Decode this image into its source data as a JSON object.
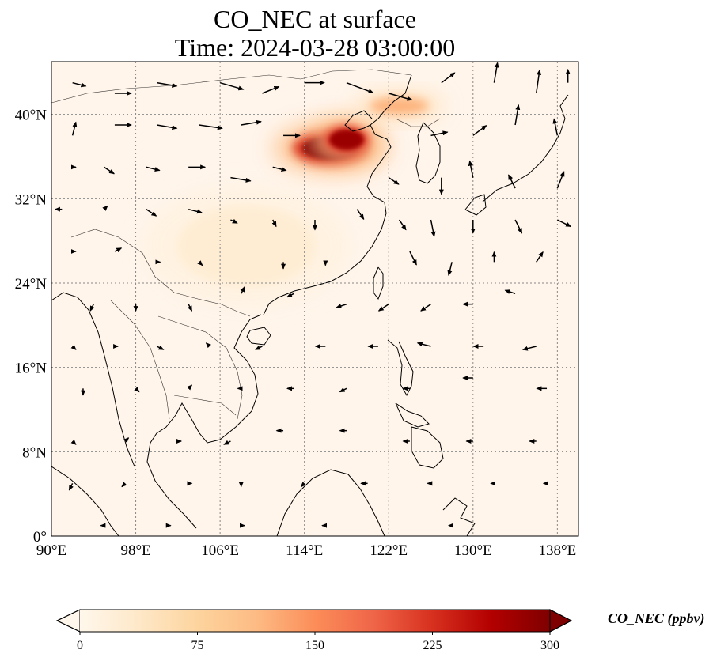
{
  "map": {
    "title_line1": "CO_NEC at surface",
    "title_line2": "Time: 2024-03-28 03:00:00",
    "extent": {
      "lon_min": 90,
      "lon_max": 140,
      "lat_min": 0,
      "lat_max": 45
    },
    "lon_ticks": [
      {
        "value": 90,
        "label": "90°E"
      },
      {
        "value": 98,
        "label": "98°E"
      },
      {
        "value": 106,
        "label": "106°E"
      },
      {
        "value": 114,
        "label": "114°E"
      },
      {
        "value": 122,
        "label": "122°E"
      },
      {
        "value": 130,
        "label": "130°E"
      },
      {
        "value": 138,
        "label": "138°E"
      }
    ],
    "lat_ticks": [
      {
        "value": 0,
        "label": "0°"
      },
      {
        "value": 8,
        "label": "8°N"
      },
      {
        "value": 16,
        "label": "16°N"
      },
      {
        "value": 24,
        "label": "24°N"
      },
      {
        "value": 32,
        "label": "32°N"
      },
      {
        "value": 40,
        "label": "40°N"
      }
    ],
    "gridlines": true,
    "background_color": "#fff5eb",
    "coast_color": "#000000"
  },
  "colorbar": {
    "label": "CO_NEC (ppbv)",
    "min": 0,
    "max": 300,
    "ticks": [
      {
        "value": 0,
        "label": "0"
      },
      {
        "value": 75,
        "label": "75"
      },
      {
        "value": 150,
        "label": "150"
      },
      {
        "value": 225,
        "label": "225"
      },
      {
        "value": 300,
        "label": "300"
      }
    ],
    "colormap": "OrRd",
    "extend": "both",
    "stops": [
      "#fff7ec",
      "#fee8c8",
      "#fdd49e",
      "#fdbb84",
      "#fc8d59",
      "#ef6548",
      "#d7301f",
      "#b30000",
      "#7f0000"
    ]
  },
  "plumes": [
    {
      "name": "north-china-plain",
      "lon": 116.5,
      "lat": 36.8,
      "rx": 3.6,
      "ry": 1.6,
      "value": 300
    },
    {
      "name": "hebei-core",
      "lon": 118.0,
      "lat": 37.6,
      "rx": 2.2,
      "ry": 1.4,
      "value": 280
    },
    {
      "name": "liaoning-band",
      "lon": 123.0,
      "lat": 40.8,
      "rx": 2.8,
      "ry": 0.8,
      "value": 160
    },
    {
      "name": "south-china-haze",
      "lon": 108.5,
      "lat": 27.5,
      "rx": 6.5,
      "ry": 3.8,
      "value": 35
    }
  ],
  "wind_vectors": [
    {
      "lon": 92,
      "lat": 43,
      "u": 4,
      "v": -1
    },
    {
      "lon": 96,
      "lat": 42,
      "u": 5,
      "v": 0
    },
    {
      "lon": 100,
      "lat": 43,
      "u": 6,
      "v": -1
    },
    {
      "lon": 106,
      "lat": 43,
      "u": 7,
      "v": -2
    },
    {
      "lon": 110,
      "lat": 42,
      "u": 5,
      "v": 2
    },
    {
      "lon": 114,
      "lat": 43,
      "u": 6,
      "v": 0
    },
    {
      "lon": 118,
      "lat": 43,
      "u": 8,
      "v": -3
    },
    {
      "lon": 122,
      "lat": 42,
      "u": 7,
      "v": -2
    },
    {
      "lon": 127,
      "lat": 43,
      "u": 4,
      "v": 3
    },
    {
      "lon": 132,
      "lat": 43,
      "u": 1,
      "v": 6
    },
    {
      "lon": 136,
      "lat": 42,
      "u": 1,
      "v": 7
    },
    {
      "lon": 139,
      "lat": 43,
      "u": 0,
      "v": 4
    },
    {
      "lon": 92,
      "lat": 38,
      "u": 1,
      "v": 4
    },
    {
      "lon": 96,
      "lat": 39,
      "u": 5,
      "v": 0
    },
    {
      "lon": 100,
      "lat": 39,
      "u": 6,
      "v": -1
    },
    {
      "lon": 104,
      "lat": 39,
      "u": 7,
      "v": -1
    },
    {
      "lon": 108,
      "lat": 39,
      "u": 6,
      "v": 1
    },
    {
      "lon": 112,
      "lat": 38,
      "u": 5,
      "v": 0
    },
    {
      "lon": 126,
      "lat": 38,
      "u": 5,
      "v": 1
    },
    {
      "lon": 130,
      "lat": 38,
      "u": 4,
      "v": 3
    },
    {
      "lon": 134,
      "lat": 39,
      "u": 1,
      "v": 6
    },
    {
      "lon": 138,
      "lat": 38,
      "u": -1,
      "v": 5
    },
    {
      "lon": 92,
      "lat": 35,
      "u": 1,
      "v": 0
    },
    {
      "lon": 95,
      "lat": 35,
      "u": 3,
      "v": -2
    },
    {
      "lon": 99,
      "lat": 35,
      "u": 4,
      "v": -1
    },
    {
      "lon": 103,
      "lat": 35,
      "u": 5,
      "v": 0
    },
    {
      "lon": 107,
      "lat": 34,
      "u": 6,
      "v": -1
    },
    {
      "lon": 111,
      "lat": 35,
      "u": 4,
      "v": -1
    },
    {
      "lon": 122,
      "lat": 34,
      "u": 3,
      "v": -2
    },
    {
      "lon": 127,
      "lat": 34,
      "u": 0,
      "v": -5
    },
    {
      "lon": 130,
      "lat": 34,
      "u": -1,
      "v": 5
    },
    {
      "lon": 134,
      "lat": 33,
      "u": -2,
      "v": 4
    },
    {
      "lon": 138,
      "lat": 33,
      "u": 2,
      "v": 5
    },
    {
      "lon": 91,
      "lat": 31,
      "u": -2,
      "v": 0
    },
    {
      "lon": 95,
      "lat": 31,
      "u": 1,
      "v": 1
    },
    {
      "lon": 99,
      "lat": 31,
      "u": 3,
      "v": -2
    },
    {
      "lon": 103,
      "lat": 31,
      "u": 4,
      "v": -1
    },
    {
      "lon": 107,
      "lat": 30,
      "u": 2,
      "v": -1
    },
    {
      "lon": 111,
      "lat": 30,
      "u": 1,
      "v": -2
    },
    {
      "lon": 115,
      "lat": 30,
      "u": 0,
      "v": -3
    },
    {
      "lon": 119,
      "lat": 31,
      "u": 2,
      "v": -3
    },
    {
      "lon": 123,
      "lat": 30,
      "u": 2,
      "v": -3
    },
    {
      "lon": 126,
      "lat": 30,
      "u": 1,
      "v": -5
    },
    {
      "lon": 130,
      "lat": 30,
      "u": 0,
      "v": -4
    },
    {
      "lon": 134,
      "lat": 30,
      "u": 2,
      "v": -4
    },
    {
      "lon": 138,
      "lat": 30,
      "u": 4,
      "v": -2
    },
    {
      "lon": 92,
      "lat": 27,
      "u": 1,
      "v": 0
    },
    {
      "lon": 96,
      "lat": 27,
      "u": 2,
      "v": 1
    },
    {
      "lon": 100,
      "lat": 26,
      "u": 1,
      "v": 0
    },
    {
      "lon": 104,
      "lat": 26,
      "u": 1,
      "v": -1
    },
    {
      "lon": 112,
      "lat": 26,
      "u": 0,
      "v": -2
    },
    {
      "lon": 116,
      "lat": 26,
      "u": 0,
      "v": -1
    },
    {
      "lon": 124,
      "lat": 27,
      "u": 2,
      "v": -4
    },
    {
      "lon": 128,
      "lat": 26,
      "u": -1,
      "v": -4
    },
    {
      "lon": 132,
      "lat": 26,
      "u": 0,
      "v": 3
    },
    {
      "lon": 136,
      "lat": 26,
      "u": 2,
      "v": 3
    },
    {
      "lon": 94,
      "lat": 22,
      "u": -1,
      "v": -2
    },
    {
      "lon": 98,
      "lat": 22,
      "u": 0,
      "v": -2
    },
    {
      "lon": 103,
      "lat": 22,
      "u": 1,
      "v": -2
    },
    {
      "lon": 108,
      "lat": 23,
      "u": 1,
      "v": 2
    },
    {
      "lon": 113,
      "lat": 23,
      "u": -2,
      "v": -1
    },
    {
      "lon": 118,
      "lat": 22,
      "u": -3,
      "v": -1
    },
    {
      "lon": 122,
      "lat": 22,
      "u": -3,
      "v": -2
    },
    {
      "lon": 126,
      "lat": 22,
      "u": -3,
      "v": -2
    },
    {
      "lon": 130,
      "lat": 22,
      "u": -3,
      "v": 0
    },
    {
      "lon": 134,
      "lat": 23,
      "u": -3,
      "v": 1
    },
    {
      "lon": 92,
      "lat": 18,
      "u": 1,
      "v": -1
    },
    {
      "lon": 96,
      "lat": 18,
      "u": 1,
      "v": 0
    },
    {
      "lon": 100,
      "lat": 18,
      "u": 2,
      "v": -1
    },
    {
      "lon": 105,
      "lat": 18,
      "u": -1,
      "v": 1
    },
    {
      "lon": 110,
      "lat": 18,
      "u": -2,
      "v": -1
    },
    {
      "lon": 116,
      "lat": 18,
      "u": -3,
      "v": 0
    },
    {
      "lon": 121,
      "lat": 18,
      "u": -3,
      "v": 0
    },
    {
      "lon": 126,
      "lat": 18,
      "u": -4,
      "v": 1
    },
    {
      "lon": 131,
      "lat": 18,
      "u": -3,
      "v": 0
    },
    {
      "lon": 136,
      "lat": 18,
      "u": -4,
      "v": -1
    },
    {
      "lon": 93,
      "lat": 14,
      "u": 0,
      "v": -2
    },
    {
      "lon": 98,
      "lat": 14,
      "u": 1,
      "v": -1
    },
    {
      "lon": 103,
      "lat": 14,
      "u": 1,
      "v": 1
    },
    {
      "lon": 108,
      "lat": 14,
      "u": -1,
      "v": 0
    },
    {
      "lon": 113,
      "lat": 14,
      "u": -2,
      "v": 0
    },
    {
      "lon": 118,
      "lat": 14,
      "u": -2,
      "v": -1
    },
    {
      "lon": 124,
      "lat": 14,
      "u": -2,
      "v": 0
    },
    {
      "lon": 130,
      "lat": 15,
      "u": -3,
      "v": 0
    },
    {
      "lon": 137,
      "lat": 14,
      "u": -3,
      "v": 0
    },
    {
      "lon": 92,
      "lat": 9,
      "u": 1,
      "v": -1
    },
    {
      "lon": 97,
      "lat": 9,
      "u": 1,
      "v": 1
    },
    {
      "lon": 102,
      "lat": 9,
      "u": 1,
      "v": 0
    },
    {
      "lon": 107,
      "lat": 9,
      "u": -2,
      "v": -1
    },
    {
      "lon": 112,
      "lat": 10,
      "u": -2,
      "v": 0
    },
    {
      "lon": 118,
      "lat": 10,
      "u": -2,
      "v": 0
    },
    {
      "lon": 124,
      "lat": 9,
      "u": -2,
      "v": 0
    },
    {
      "lon": 130,
      "lat": 9,
      "u": -2,
      "v": 0
    },
    {
      "lon": 136,
      "lat": 9,
      "u": -2,
      "v": 0
    },
    {
      "lon": 92,
      "lat": 5,
      "u": -1,
      "v": -2
    },
    {
      "lon": 97,
      "lat": 5,
      "u": -1,
      "v": -1
    },
    {
      "lon": 103,
      "lat": 5,
      "u": 1,
      "v": 0
    },
    {
      "lon": 108,
      "lat": 5,
      "u": 0,
      "v": -1
    },
    {
      "lon": 114,
      "lat": 5,
      "u": -1,
      "v": -1
    },
    {
      "lon": 120,
      "lat": 5,
      "u": -2,
      "v": 0
    },
    {
      "lon": 126,
      "lat": 5,
      "u": -1,
      "v": 0
    },
    {
      "lon": 132,
      "lat": 5,
      "u": -1,
      "v": 0
    },
    {
      "lon": 137,
      "lat": 5,
      "u": -1,
      "v": 0
    },
    {
      "lon": 95,
      "lat": 1,
      "u": -1,
      "v": 0
    },
    {
      "lon": 101,
      "lat": 1,
      "u": 1,
      "v": 0
    },
    {
      "lon": 108,
      "lat": 1,
      "u": 1,
      "v": 0
    },
    {
      "lon": 116,
      "lat": 1,
      "u": -1,
      "v": 0
    },
    {
      "lon": 128,
      "lat": 1,
      "u": -1,
      "v": 0
    }
  ]
}
